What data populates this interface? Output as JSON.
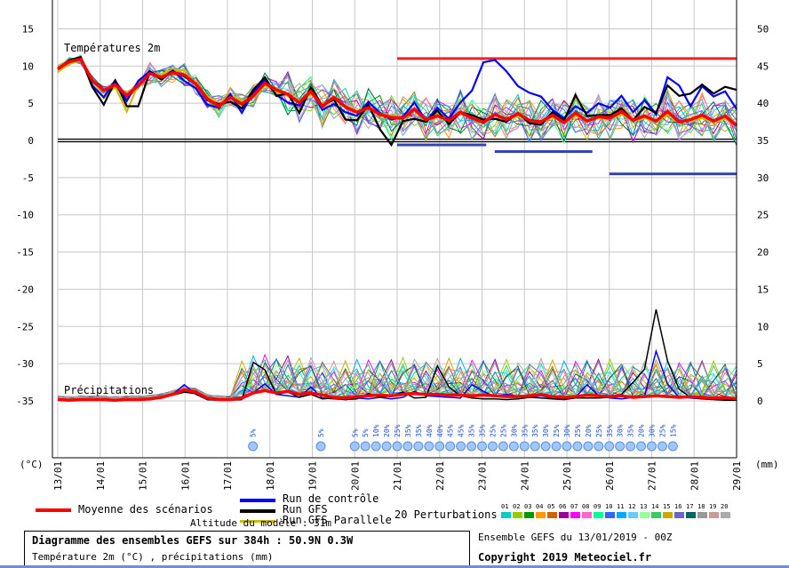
{
  "chart_data": {
    "type": "line",
    "panels": {
      "temperature": {
        "label": "Températures 2m",
        "y_left_ticks": [
          "15",
          "10",
          "5",
          "0",
          "-5",
          "-10",
          "-15",
          "-20",
          "-25",
          "-30",
          "-35"
        ],
        "y_right_ticks": [
          "50",
          "45",
          "40",
          "35",
          "30",
          "25",
          "20",
          "15",
          "10",
          "5",
          "0"
        ]
      },
      "precipitation": {
        "label": "Précipitations"
      }
    },
    "xlabel_left": "(°C)",
    "xlabel_right": "(mm)",
    "x_ticks": [
      "13/01",
      "14/01",
      "15/01",
      "16/01",
      "17/01",
      "18/01",
      "19/01",
      "20/01",
      "21/01",
      "22/01",
      "23/01",
      "24/01",
      "25/01",
      "26/01",
      "27/01",
      "28/01",
      "29/01"
    ],
    "series": [
      {
        "name": "Moyenne des scénarios",
        "color": "#ff0000",
        "temperature": [
          9.6,
          10.6,
          10.9,
          8.1,
          6.7,
          7.5,
          6.0,
          7.4,
          9.0,
          8.5,
          9.1,
          8.8,
          7.6,
          5.6,
          4.6,
          5.8,
          4.9,
          6.0,
          7.7,
          6.8,
          6.2,
          5.1,
          6.6,
          4.6,
          5.8,
          4.5,
          3.8,
          4.4,
          3.5,
          3.1,
          3.0,
          4.2,
          2.8,
          3.3,
          2.7,
          3.8,
          3.0,
          2.4,
          3.5,
          2.8,
          3.6,
          2.7,
          2.5,
          3.4,
          2.4,
          3.7,
          2.6,
          3.2,
          3.0,
          3.9,
          2.7,
          3.3,
          2.6,
          3.9,
          2.5,
          2.8,
          3.4,
          2.6,
          3.3,
          2.0
        ],
        "precipitation": [
          0.3,
          0.2,
          0.3,
          0.3,
          0.3,
          0.2,
          0.3,
          0.3,
          0.4,
          0.6,
          1.0,
          1.6,
          1.3,
          0.5,
          0.3,
          0.3,
          0.5,
          1.2,
          1.5,
          1.2,
          1.4,
          1.0,
          1.2,
          0.9,
          0.6,
          0.5,
          0.7,
          0.8,
          0.9,
          0.8,
          1.0,
          1.1,
          1.0,
          1.0,
          0.9,
          0.9,
          0.8,
          0.9,
          0.8,
          0.7,
          0.7,
          0.8,
          1.0,
          0.7,
          0.6,
          0.7,
          0.9,
          0.8,
          0.7,
          0.8,
          0.6,
          0.7,
          0.8,
          0.7,
          0.6,
          0.7,
          0.6,
          0.5,
          0.6,
          0.4
        ]
      },
      {
        "name": "Run de contrôle",
        "color": "#0000ff",
        "temperature": [
          9.7,
          10.5,
          11.0,
          7.4,
          5.8,
          8.1,
          5.3,
          8.0,
          9.3,
          8.4,
          9.4,
          8.0,
          7.0,
          4.8,
          4.4,
          6.2,
          3.7,
          6.5,
          8.1,
          6.1,
          5.1,
          4.7,
          6.8,
          4.1,
          4.9,
          3.8,
          3.3,
          5.2,
          3.7,
          2.8,
          3.2,
          5.1,
          2.6,
          4.4,
          2.9,
          5.1,
          6.7,
          10.5,
          10.8,
          9.3,
          7.3,
          6.4,
          5.9,
          4.1,
          3.0,
          4.6,
          3.7,
          5.0,
          4.4,
          6.0,
          3.8,
          5.4,
          3.5,
          8.5,
          7.4,
          4.6,
          7.3,
          5.9,
          6.6,
          4.2
        ],
        "precipitation": [
          0.2,
          0.2,
          0.2,
          0.2,
          0.2,
          0.2,
          0.2,
          0.2,
          0.3,
          0.5,
          1.0,
          2.3,
          1.0,
          0.3,
          0.2,
          0.2,
          0.4,
          1.2,
          2.4,
          1.0,
          0.8,
          0.6,
          2.0,
          0.5,
          0.4,
          0.3,
          0.5,
          0.4,
          0.6,
          0.4,
          0.6,
          1.4,
          0.8,
          0.7,
          0.6,
          0.5,
          2.3,
          1.4,
          0.7,
          1.0,
          0.7,
          0.6,
          0.8,
          0.5,
          0.4,
          0.6,
          2.3,
          0.8,
          0.5,
          0.4,
          0.6,
          0.7,
          6.8,
          2.4,
          0.6,
          0.5,
          0.4,
          0.5,
          0.4,
          0.3
        ]
      },
      {
        "name": "Run GFS",
        "color": "#000000",
        "temperature": [
          9.6,
          10.8,
          11.2,
          7.2,
          4.8,
          8.0,
          4.6,
          4.6,
          9.2,
          8.2,
          9.3,
          8.6,
          7.5,
          5.4,
          4.9,
          5.2,
          4.3,
          6.8,
          8.5,
          6.0,
          6.3,
          3.7,
          7.1,
          4.7,
          5.5,
          2.8,
          2.7,
          4.8,
          1.5,
          -0.6,
          2.6,
          2.9,
          2.5,
          4.0,
          2.2,
          3.8,
          3.4,
          2.8,
          2.9,
          2.5,
          3.7,
          2.3,
          2.1,
          3.8,
          2.7,
          6.1,
          3.3,
          3.4,
          3.4,
          4.3,
          2.7,
          4.5,
          3.7,
          7.4,
          6.0,
          6.3,
          7.5,
          6.3,
          7.2,
          6.8
        ],
        "precipitation": [
          0.2,
          0.2,
          0.2,
          0.2,
          0.2,
          0.2,
          0.2,
          0.2,
          0.3,
          0.5,
          0.9,
          1.3,
          1.1,
          0.3,
          0.2,
          0.2,
          0.3,
          5.3,
          4.3,
          1.0,
          1.3,
          0.6,
          1.0,
          0.4,
          0.5,
          0.3,
          0.4,
          1.1,
          0.6,
          0.8,
          1.3,
          0.5,
          0.6,
          4.8,
          2.0,
          0.8,
          0.5,
          0.4,
          0.4,
          0.3,
          0.4,
          0.6,
          0.5,
          0.4,
          0.3,
          0.5,
          0.5,
          0.5,
          0.6,
          1.0,
          2.6,
          4.4,
          12.4,
          5.5,
          1.7,
          0.6,
          0.4,
          0.3,
          0.2,
          0.2
        ]
      },
      {
        "name": "Run GFS Parallele",
        "color": "#ccbb00",
        "temperature": [
          9.2,
          10.3,
          10.7,
          8.3,
          5.7,
          7.2,
          3.9,
          7.5,
          9.0,
          8.9,
          9.5,
          9.4,
          7.2,
          6.0,
          5.0,
          6.2,
          5.3,
          5.8,
          7.4,
          6.5,
          6.0,
          5.4,
          6.2,
          4.9,
          5.6,
          4.7,
          3.9,
          4.5,
          3.7,
          3.3,
          3.1,
          4.0,
          2.9,
          3.5,
          2.8,
          3.6,
          3.1,
          2.6,
          3.4,
          2.9,
          3.2,
          2.7,
          2.6,
          3.1,
          2.5,
          3.3,
          2.7,
          3.0,
          2.9,
          3.5,
          2.6,
          3.0,
          2.5,
          3.5,
          2.4,
          2.7,
          3.0,
          2.5,
          2.9,
          2.1
        ],
        "precipitation": [
          0.3,
          0.2,
          0.3,
          0.3,
          0.3,
          0.2,
          0.3,
          0.3,
          0.4,
          0.6,
          1.0,
          1.6,
          1.3,
          0.5,
          0.3,
          0.3,
          0.5,
          1.2,
          1.5,
          1.2,
          1.4,
          1.0,
          1.2,
          0.9,
          0.6,
          0.5,
          0.7,
          0.8,
          0.9,
          0.8,
          1.0,
          1.1,
          1.0,
          1.0,
          0.9,
          0.9,
          0.8,
          0.9,
          0.8,
          0.7,
          0.7,
          0.8,
          1.0,
          0.7,
          0.6,
          0.7,
          0.9,
          0.8,
          0.7,
          0.8,
          0.6,
          0.7,
          0.8,
          0.7,
          0.6,
          0.7,
          0.6,
          0.5,
          0.6,
          0.4
        ]
      }
    ],
    "perturbations": {
      "label": "20 Perturbations",
      "numbers": [
        "01",
        "02",
        "03",
        "04",
        "05",
        "06",
        "07",
        "08",
        "09",
        "10",
        "11",
        "12",
        "13",
        "14",
        "15",
        "16",
        "17",
        "18",
        "19",
        "20"
      ],
      "colors": [
        "#00cccc",
        "#99cc00",
        "#009900",
        "#ff9900",
        "#cc6600",
        "#990099",
        "#ff00ff",
        "#ff66cc",
        "#00ff99",
        "#3366ff",
        "#00aaff",
        "#66ccff",
        "#99ff99",
        "#33cc66",
        "#ccaa00",
        "#6666cc",
        "#006666",
        "#999999",
        "#cc9999",
        "#aaaaaa"
      ]
    },
    "snow_probability": {
      "labels": [
        "5%",
        "5%",
        "5%",
        "5%",
        "10%",
        "20%",
        "25%",
        "35%",
        "35%",
        "40%",
        "40%",
        "45%",
        "45%",
        "35%",
        "35%",
        "25%",
        "25%",
        "30%",
        "35%",
        "35%",
        "30%",
        "25%",
        "30%",
        "25%",
        "20%",
        "25%",
        "35%",
        "30%",
        "35%",
        "20%",
        "30%",
        "25%",
        "15%"
      ],
      "dates": [
        4.6,
        6.2,
        7.0,
        7.25,
        7.5,
        7.75,
        8.0,
        8.25,
        8.5,
        8.75,
        9.0,
        9.25,
        9.5,
        9.75,
        10.0,
        10.25,
        10.5,
        10.75,
        11.0,
        11.25,
        11.5,
        11.75,
        12.0,
        12.25,
        12.5,
        12.75,
        13.0,
        13.25,
        13.5,
        13.75,
        14.0,
        14.25,
        14.5
      ]
    },
    "reference_lines": {
      "red_max_temp": 11.0,
      "blue_min_segments": [
        {
          "from": 8.0,
          "to": 10.1,
          "value": -0.6
        },
        {
          "from": 10.3,
          "to": 12.6,
          "value": -1.5
        },
        {
          "from": 13.0,
          "to": 16.0,
          "value": -4.5
        }
      ],
      "zero_line": 0
    },
    "legend": {
      "mean_label": "Moyenne des scénarios",
      "control_label": "Run de contrôle",
      "gfs_label": "Run GFS",
      "parallel_label": "Run GFS Parallele",
      "altitude_label": "Altitude du modèle : 31m"
    }
  },
  "footer": {
    "title": "Diagramme des ensembles GEFS sur 384h : 50.9N 0.3W",
    "subtitle": "Température 2m (°C) , précipitations (mm)",
    "ens_run": "Ensemble GEFS du 13/01/2019 - 00Z",
    "copyright": "Copyright 2019 Meteociel.fr"
  }
}
